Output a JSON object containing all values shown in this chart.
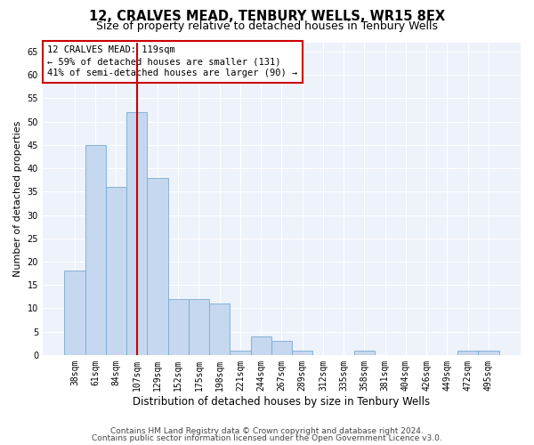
{
  "title": "12, CRALVES MEAD, TENBURY WELLS, WR15 8EX",
  "subtitle": "Size of property relative to detached houses in Tenbury Wells",
  "xlabel": "Distribution of detached houses by size in Tenbury Wells",
  "ylabel": "Number of detached properties",
  "categories": [
    "38sqm",
    "61sqm",
    "84sqm",
    "107sqm",
    "129sqm",
    "152sqm",
    "175sqm",
    "198sqm",
    "221sqm",
    "244sqm",
    "267sqm",
    "289sqm",
    "312sqm",
    "335sqm",
    "358sqm",
    "381sqm",
    "404sqm",
    "426sqm",
    "449sqm",
    "472sqm",
    "495sqm"
  ],
  "values": [
    18,
    45,
    36,
    52,
    38,
    12,
    12,
    11,
    1,
    4,
    3,
    1,
    0,
    0,
    1,
    0,
    0,
    0,
    0,
    1,
    1
  ],
  "bar_color": "#c5d8ef",
  "bar_edge_color": "#7aabcf",
  "vline_x": 3,
  "vline_color": "#cc0000",
  "ylim": [
    0,
    67
  ],
  "yticks": [
    0,
    5,
    10,
    15,
    20,
    25,
    30,
    35,
    40,
    45,
    50,
    55,
    60,
    65
  ],
  "annotation_text": "12 CRALVES MEAD: 119sqm\n← 59% of detached houses are smaller (131)\n41% of semi-detached houses are larger (90) →",
  "footer1": "Contains HM Land Registry data © Crown copyright and database right 2024.",
  "footer2": "Contains public sector information licensed under the Open Government Licence v3.0.",
  "background_color": "#eef2fb",
  "grid_color": "#ffffff",
  "title_fontsize": 10.5,
  "subtitle_fontsize": 9,
  "ylabel_fontsize": 8,
  "xlabel_fontsize": 8.5,
  "tick_fontsize": 7,
  "annotation_fontsize": 7.5,
  "footer_fontsize": 6.5
}
